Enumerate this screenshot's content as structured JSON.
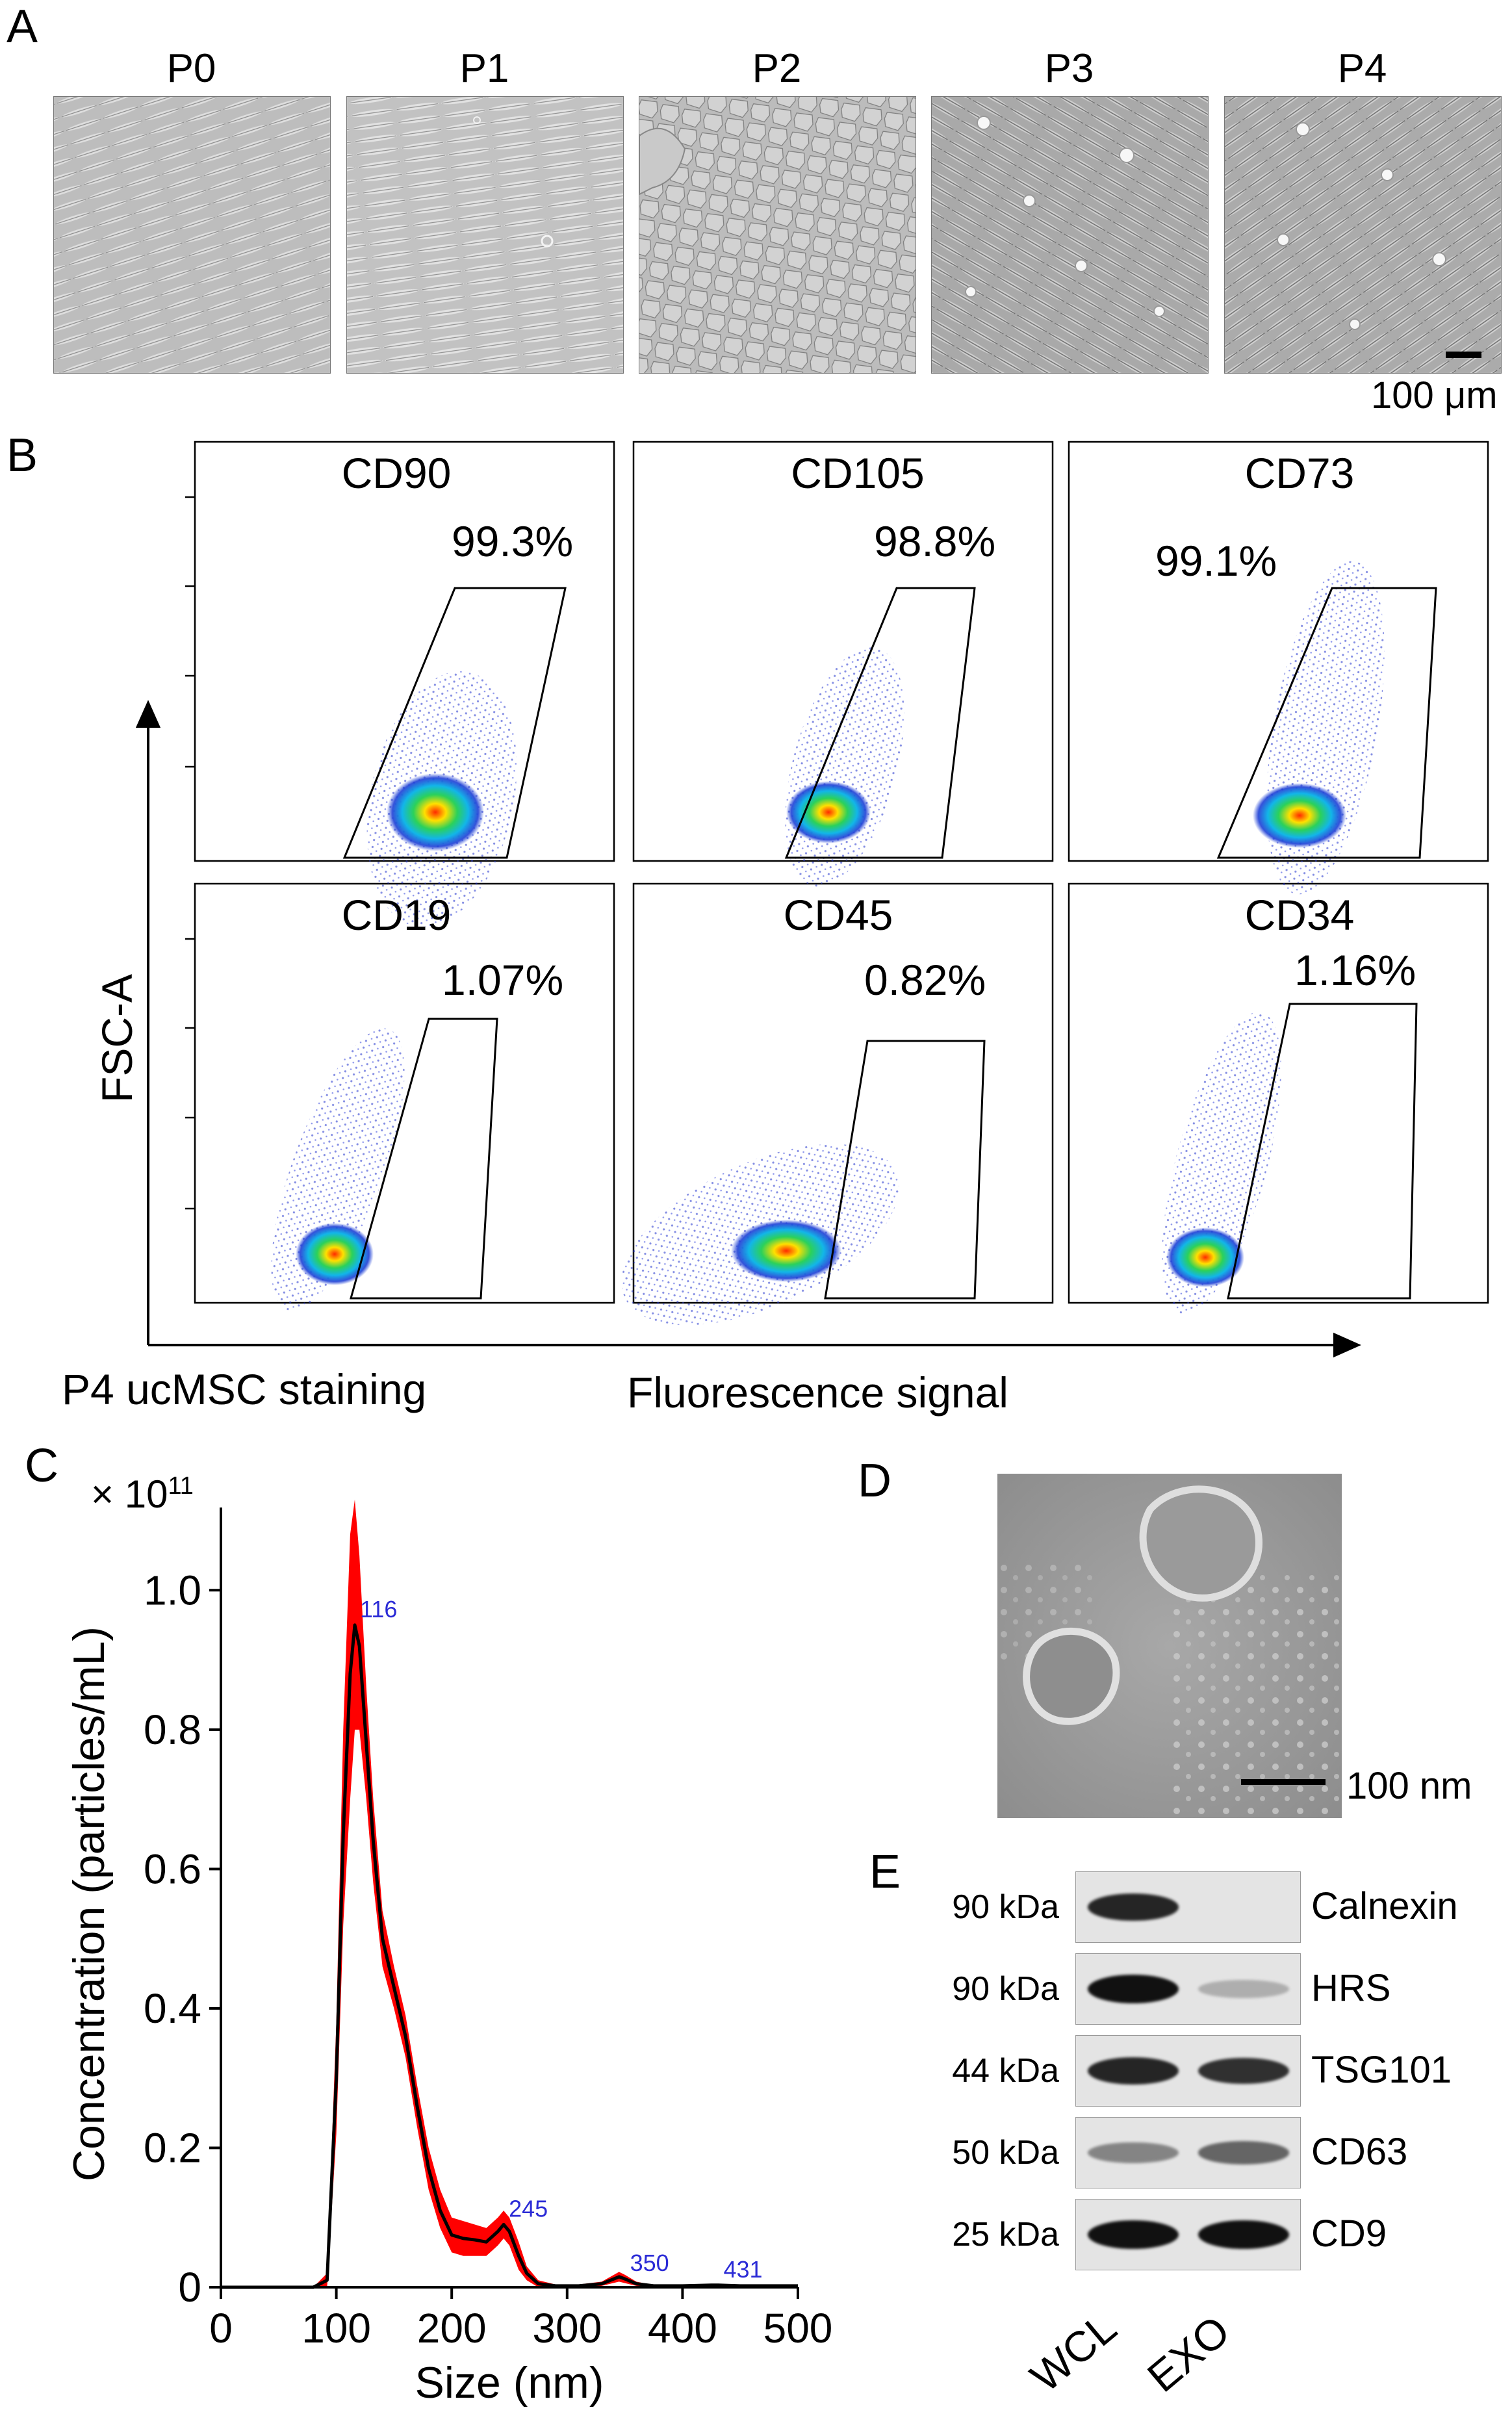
{
  "panel_a": {
    "letter": "A",
    "images": [
      {
        "label": "P0"
      },
      {
        "label": "P1"
      },
      {
        "label": "P2"
      },
      {
        "label": "P3"
      },
      {
        "label": "P4"
      }
    ],
    "scale_bar": "100 μm"
  },
  "panel_b": {
    "letter": "B",
    "plots": [
      {
        "marker": "CD90",
        "percent": "99.3%"
      },
      {
        "marker": "CD105",
        "percent": "98.8%"
      },
      {
        "marker": "CD73",
        "percent": "99.1%"
      },
      {
        "marker": "CD19",
        "percent": "1.07%"
      },
      {
        "marker": "CD45",
        "percent": "0.82%"
      },
      {
        "marker": "CD34",
        "percent": "1.16%"
      }
    ],
    "y_axis_label": "FSC-A",
    "x_axis_label": "Fluorescence signal",
    "caption": "P4 ucMSC staining"
  },
  "panel_c": {
    "letter": "C",
    "exponent_base": "× 10",
    "exponent_power": "11"
  },
  "chart_data": {
    "type": "line",
    "title": "",
    "xlabel": "Size (nm)",
    "ylabel": "Concentration (particles/mL)",
    "y_multiplier": "× 10^11",
    "xlim": [
      0,
      500
    ],
    "ylim": [
      0,
      1.1
    ],
    "xticks": [
      0,
      100,
      200,
      300,
      400,
      500
    ],
    "yticks": [
      0,
      0.2,
      0.4,
      0.6,
      0.8,
      1.0
    ],
    "ytick_labels": [
      "0",
      "0.2",
      "0.4",
      "0.6",
      "0.8",
      "1.0"
    ],
    "series": [
      {
        "name": "mean",
        "x": [
          0,
          80,
          92,
          100,
          106,
          112,
          116,
          120,
          126,
          132,
          140,
          150,
          160,
          170,
          180,
          190,
          200,
          210,
          220,
          230,
          240,
          245,
          250,
          258,
          265,
          275,
          290,
          310,
          330,
          345,
          350,
          360,
          375,
          400,
          425,
          431,
          450,
          500
        ],
        "y": [
          0,
          0,
          0.01,
          0.3,
          0.65,
          0.88,
          0.95,
          0.92,
          0.78,
          0.64,
          0.5,
          0.43,
          0.36,
          0.26,
          0.17,
          0.11,
          0.075,
          0.07,
          0.068,
          0.065,
          0.08,
          0.09,
          0.08,
          0.045,
          0.02,
          0.005,
          0.002,
          0.002,
          0.005,
          0.015,
          0.012,
          0.005,
          0.002,
          0.002,
          0.003,
          0.003,
          0.002,
          0.002
        ]
      },
      {
        "name": "error-upper",
        "x": [
          0,
          80,
          92,
          100,
          106,
          112,
          116,
          120,
          126,
          132,
          140,
          150,
          160,
          170,
          180,
          190,
          200,
          210,
          220,
          230,
          240,
          245,
          250,
          258,
          265,
          275,
          290,
          310,
          330,
          345,
          350,
          360,
          375,
          400,
          425,
          431,
          450,
          500
        ],
        "y": [
          0,
          0,
          0.02,
          0.38,
          0.8,
          1.08,
          1.13,
          1.05,
          0.86,
          0.7,
          0.54,
          0.46,
          0.39,
          0.29,
          0.2,
          0.14,
          0.1,
          0.095,
          0.09,
          0.085,
          0.1,
          0.11,
          0.1,
          0.065,
          0.03,
          0.01,
          0.004,
          0.004,
          0.008,
          0.022,
          0.018,
          0.008,
          0.003,
          0.003,
          0.004,
          0.004,
          0.003,
          0.003
        ]
      },
      {
        "name": "error-lower",
        "x": [
          0,
          80,
          92,
          100,
          106,
          112,
          116,
          120,
          126,
          132,
          140,
          150,
          160,
          170,
          180,
          190,
          200,
          210,
          220,
          230,
          240,
          245,
          250,
          258,
          265,
          275,
          290,
          310,
          330,
          345,
          350,
          360,
          375,
          400,
          425,
          431,
          450,
          500
        ],
        "y": [
          0,
          0,
          0.0,
          0.22,
          0.52,
          0.7,
          0.8,
          0.8,
          0.7,
          0.58,
          0.46,
          0.4,
          0.33,
          0.23,
          0.14,
          0.085,
          0.05,
          0.045,
          0.045,
          0.045,
          0.06,
          0.07,
          0.06,
          0.025,
          0.01,
          0.0,
          0.0,
          0.0,
          0.002,
          0.008,
          0.006,
          0.002,
          0.0,
          0.0,
          0.001,
          0.001,
          0.0,
          0.0
        ]
      }
    ],
    "peak_annotations": [
      {
        "x": 116,
        "y": 0.95,
        "label": "116"
      },
      {
        "x": 245,
        "y": 0.09,
        "label": "245"
      },
      {
        "x": 350,
        "y": 0.012,
        "label": "350"
      },
      {
        "x": 431,
        "y": 0.003,
        "label": "431"
      }
    ],
    "colors": {
      "line": "#000000",
      "band": "#ff0000",
      "annotation": "#2b2bd6"
    }
  },
  "panel_d": {
    "letter": "D",
    "scale_bar": "100 nm"
  },
  "panel_e": {
    "letter": "E",
    "rows": [
      {
        "mw": "90 kDa",
        "protein": "Calnexin",
        "wcl": 0.9,
        "exo": 0.0
      },
      {
        "mw": "90 kDa",
        "protein": "HRS",
        "wcl": 1.0,
        "exo": 0.25
      },
      {
        "mw": "44 kDa",
        "protein": "TSG101",
        "wcl": 0.9,
        "exo": 0.85
      },
      {
        "mw": "50 kDa",
        "protein": "CD63",
        "wcl": 0.45,
        "exo": 0.6
      },
      {
        "mw": "25 kDa",
        "protein": "CD9",
        "wcl": 1.0,
        "exo": 1.0
      }
    ],
    "lanes": [
      "WCL",
      "EXO"
    ]
  }
}
